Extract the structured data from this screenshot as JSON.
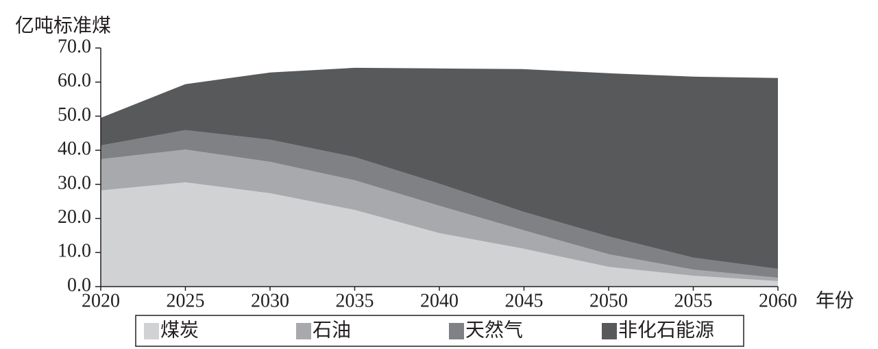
{
  "chart_data": {
    "type": "stacked-area",
    "y_label": "亿吨标准煤",
    "x_label": "年份",
    "x": [
      2020,
      2025,
      2030,
      2035,
      2040,
      2045,
      2050,
      2055,
      2060
    ],
    "xlim": [
      2020,
      2060
    ],
    "xticks": [
      2020,
      2025,
      2030,
      2035,
      2040,
      2045,
      2050,
      2055,
      2060
    ],
    "ylim": [
      0,
      70
    ],
    "yticks": [
      {
        "value": 0,
        "label": "0.0"
      },
      {
        "value": 10,
        "label": "10.0"
      },
      {
        "value": 20,
        "label": "20.0"
      },
      {
        "value": 30,
        "label": "30.0"
      },
      {
        "value": 40,
        "label": "40.0"
      },
      {
        "value": 50,
        "label": "50.0"
      },
      {
        "value": 60,
        "label": "60.0"
      },
      {
        "value": 70,
        "label": "70.0"
      }
    ],
    "legend": "bottom",
    "series": [
      {
        "name": "煤炭",
        "color": "#d1d2d4",
        "values": [
          28.2,
          30.6,
          27.4,
          22.5,
          15.7,
          11.1,
          5.8,
          3.2,
          1.6
        ]
      },
      {
        "name": "石油",
        "color": "#a8a9ac",
        "values": [
          9.2,
          9.6,
          9.2,
          8.7,
          8.0,
          5.4,
          3.7,
          1.8,
          1.0
        ]
      },
      {
        "name": "天然气",
        "color": "#808184",
        "values": [
          4.0,
          5.7,
          6.5,
          6.8,
          6.5,
          5.4,
          5.2,
          3.5,
          2.6
        ]
      },
      {
        "name": "非化石能源",
        "color": "#58595b",
        "values": [
          8.1,
          13.5,
          19.7,
          26.2,
          33.8,
          41.9,
          47.9,
          53.1,
          56.0
        ]
      }
    ]
  }
}
